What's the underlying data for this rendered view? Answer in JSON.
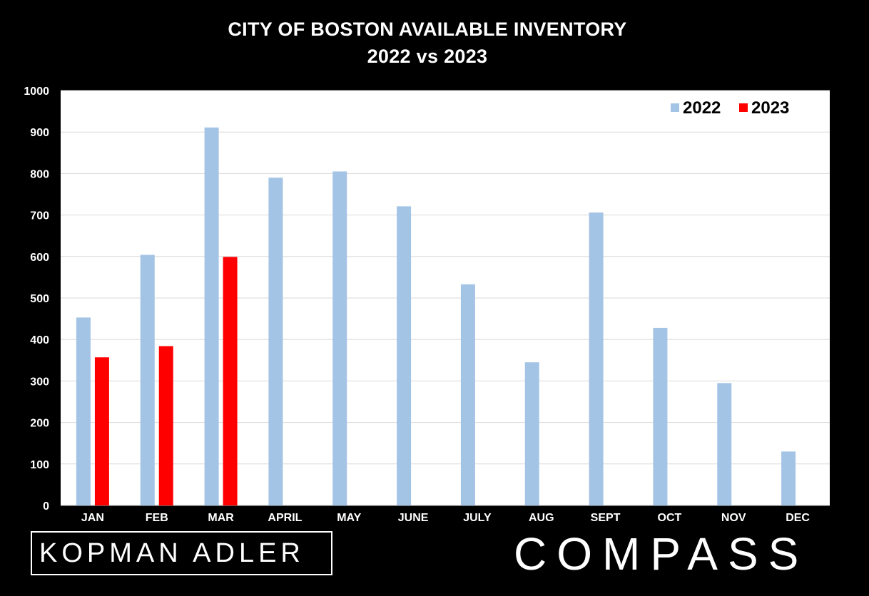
{
  "header": {
    "title_line1": "CITY OF BOSTON AVAILABLE INVENTORY",
    "title_line2": "2022 vs 2023"
  },
  "logos": {
    "left_text": "KOPMAN ADLER",
    "right_text": "COMPASS"
  },
  "colors": {
    "background": "#000000",
    "plot_background": "#ffffff",
    "series_2022": "#a4c4e6",
    "series_2023": "#ff0000",
    "grid": "#d9d9d9"
  },
  "chart_data": {
    "type": "bar",
    "title": "CITY OF BOSTON AVAILABLE INVENTORY 2022 vs 2023",
    "categories": [
      "JAN",
      "FEB",
      "MAR",
      "APRIL",
      "MAY",
      "JUNE",
      "JULY",
      "AUG",
      "SEPT",
      "OCT",
      "NOV",
      "DEC"
    ],
    "series": [
      {
        "name": "2022",
        "color": "#a4c4e6",
        "values": [
          453,
          604,
          911,
          790,
          805,
          721,
          533,
          345,
          706,
          428,
          295,
          130
        ]
      },
      {
        "name": "2023",
        "color": "#ff0000",
        "values": [
          357,
          384,
          599,
          null,
          null,
          null,
          null,
          null,
          null,
          null,
          null,
          null
        ]
      }
    ],
    "yticks": [
      0,
      100,
      200,
      300,
      400,
      500,
      600,
      700,
      800,
      900,
      1000
    ],
    "ylim": [
      0,
      1000
    ],
    "grid": true,
    "legend": "top-right",
    "xlabel": "",
    "ylabel": ""
  }
}
